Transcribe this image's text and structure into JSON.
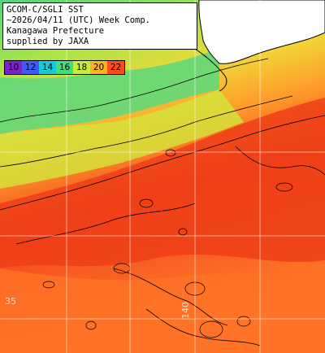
{
  "title_lines": [
    "GCOM-C/SGLI SST",
    "~2026/04/11 (UTC) Week Comp.",
    "Kanagawa Prefecture",
    "supplied by JAXA"
  ],
  "color_scale": [
    {
      "label": "10",
      "color": "#7a22c8"
    },
    {
      "label": "12",
      "color": "#3b5bff"
    },
    {
      "label": "14",
      "color": "#19c8d8"
    },
    {
      "label": "16",
      "color": "#3ee07a"
    },
    {
      "label": "18",
      "color": "#c8ec3a"
    },
    {
      "label": "20",
      "color": "#ffb020"
    },
    {
      "label": "22",
      "color": "#ff4a1a"
    }
  ],
  "grid_labels": [
    "35",
    "140"
  ],
  "colors": {
    "land": "#ffffff",
    "water_cool": "#5ad87a",
    "water_mid": "#d8e840",
    "water_warm": "#ff9a2a",
    "water_hot": "#f0441c",
    "contour": "#000000",
    "grid": "#ffffff"
  }
}
